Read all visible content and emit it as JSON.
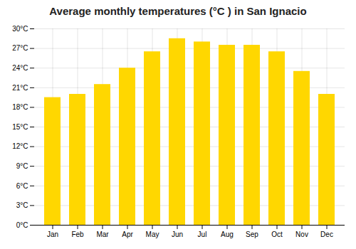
{
  "chart_data": {
    "type": "bar",
    "title": "Average monthly temperatures (°C ) in San Ignacio",
    "categories": [
      "Jan",
      "Feb",
      "Mar",
      "Apr",
      "May",
      "Jun",
      "Jul",
      "Aug",
      "Sep",
      "Oct",
      "Nov",
      "Dec"
    ],
    "values": [
      19.5,
      20.0,
      21.5,
      24.0,
      26.5,
      28.5,
      28.0,
      27.5,
      27.5,
      26.5,
      23.5,
      20.0
    ],
    "color": "#FFD700",
    "ylim": [
      0,
      30
    ],
    "yticks": [
      {
        "value": 0,
        "label": "0°C"
      },
      {
        "value": 3,
        "label": "3°C"
      },
      {
        "value": 6,
        "label": "6°C"
      },
      {
        "value": 9,
        "label": "9°C"
      },
      {
        "value": 12,
        "label": "12°C"
      },
      {
        "value": 15,
        "label": "15°C"
      },
      {
        "value": 18,
        "label": "18°C"
      },
      {
        "value": 21,
        "label": "21°C"
      },
      {
        "value": 24,
        "label": "24°C"
      },
      {
        "value": 27,
        "label": "27°C"
      },
      {
        "value": 30,
        "label": "30°C"
      }
    ],
    "grid": true
  }
}
